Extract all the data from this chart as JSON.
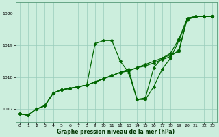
{
  "xlabel": "Graphe pression niveau de la mer (hPa)",
  "bg_color": "#cceedd",
  "grid_color": "#99ccbb",
  "line_color": "#006600",
  "xlim": [
    -0.5,
    23.5
  ],
  "ylim": [
    1016.6,
    1020.35
  ],
  "yticks": [
    1017,
    1018,
    1019,
    1020
  ],
  "xticks": [
    0,
    1,
    2,
    3,
    4,
    5,
    6,
    7,
    8,
    9,
    10,
    11,
    12,
    13,
    14,
    15,
    16,
    17,
    18,
    19,
    20,
    21,
    22,
    23
  ],
  "x": [
    0,
    1,
    2,
    3,
    4,
    5,
    6,
    7,
    8,
    9,
    10,
    11,
    12,
    13,
    14,
    15,
    16,
    17,
    18,
    19,
    20,
    21,
    22,
    23
  ],
  "line1": [
    1016.85,
    1016.8,
    1017.0,
    1017.1,
    1017.5,
    1017.6,
    1017.65,
    1017.7,
    1017.75,
    1019.05,
    1019.15,
    1019.15,
    1018.5,
    1018.15,
    1017.3,
    1017.3,
    1017.7,
    1018.25,
    1018.6,
    1019.15,
    1019.8,
    1019.9,
    1019.9,
    1019.9
  ],
  "line2": [
    1016.85,
    1016.8,
    1017.0,
    1017.1,
    1017.5,
    1017.6,
    1017.65,
    1017.7,
    1017.75,
    1017.85,
    1017.95,
    1018.05,
    1018.15,
    1018.25,
    1017.3,
    1017.35,
    1018.3,
    1018.6,
    1018.75,
    1019.2,
    1019.85,
    1019.9,
    1019.9,
    1019.9
  ],
  "line3": [
    1016.85,
    1016.8,
    1017.0,
    1017.1,
    1017.5,
    1017.6,
    1017.65,
    1017.7,
    1017.75,
    1017.85,
    1017.95,
    1018.05,
    1018.15,
    1018.2,
    1018.3,
    1018.4,
    1018.5,
    1018.6,
    1018.7,
    1018.8,
    1019.85,
    1019.9,
    1019.9,
    1019.9
  ],
  "line4": [
    1016.85,
    1016.8,
    1017.0,
    1017.1,
    1017.5,
    1017.6,
    1017.65,
    1017.7,
    1017.75,
    1017.85,
    1017.95,
    1018.05,
    1018.15,
    1018.2,
    1018.3,
    1018.35,
    1018.45,
    1018.55,
    1018.65,
    1018.85,
    1019.85,
    1019.9,
    1019.9,
    1019.9
  ]
}
